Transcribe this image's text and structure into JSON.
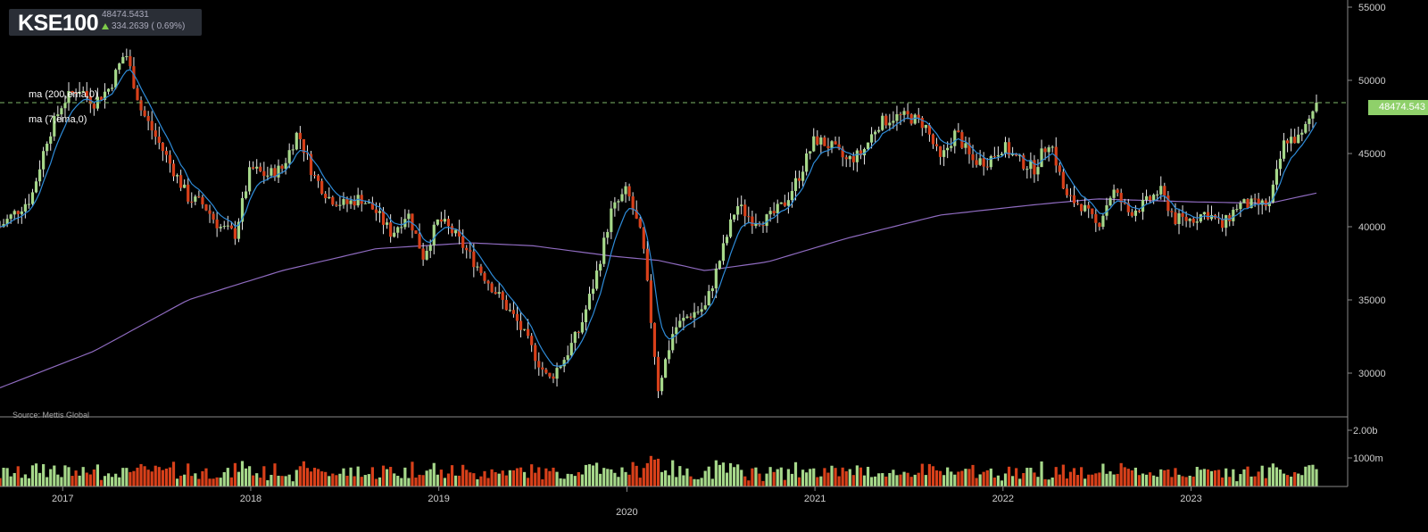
{
  "header": {
    "symbol": "KSE100",
    "price": "48474.5431",
    "change": "334.2639 ( 0.69%)"
  },
  "legend": [
    {
      "label": "ma (200,ema,0)",
      "color": "#8f6bc0"
    },
    {
      "label": "ma (7,ema,0)",
      "color": "#2e8bd8"
    }
  ],
  "source": "Source: Mettis Global",
  "price_label": "48474.543",
  "colors": {
    "up": "#a6d88a",
    "down": "#d8401a",
    "ma200": "#8f6bc0",
    "ma7": "#2e8bd8",
    "grid": "#888888",
    "last_price_line": "#7fb86a"
  },
  "chart_data": {
    "type": "candlestick",
    "y_axis_ticks": [
      "55000",
      "50000",
      "45000",
      "40000",
      "35000",
      "30000"
    ],
    "ylim": [
      28000,
      55000
    ],
    "volume_ticks": [
      "2.00b",
      "1000m"
    ],
    "x_axis_ticks": [
      "2017",
      "2018",
      "2019",
      "2020",
      "2021",
      "2022",
      "2023"
    ],
    "xlim": [
      "2016-09",
      "2023-09"
    ],
    "last_price": 48474.5431,
    "close_path": [
      [
        "2016-09",
        40000
      ],
      [
        "2016-10",
        41000
      ],
      [
        "2016-11",
        42000
      ],
      [
        "2016-12",
        46000
      ],
      [
        "2017-01",
        48500
      ],
      [
        "2017-02",
        49500
      ],
      [
        "2017-03",
        48500
      ],
      [
        "2017-04",
        49500
      ],
      [
        "2017-05",
        52000
      ],
      [
        "2017-06",
        48000
      ],
      [
        "2017-07",
        46000
      ],
      [
        "2017-08",
        44000
      ],
      [
        "2017-09",
        42000
      ],
      [
        "2017-10",
        41500
      ],
      [
        "2017-11",
        40000
      ],
      [
        "2017-12",
        39500
      ],
      [
        "2018-01",
        44000
      ],
      [
        "2018-02",
        43500
      ],
      [
        "2018-03",
        44000
      ],
      [
        "2018-04",
        46500
      ],
      [
        "2018-05",
        43500
      ],
      [
        "2018-06",
        42000
      ],
      [
        "2018-07",
        41500
      ],
      [
        "2018-08",
        42000
      ],
      [
        "2018-09",
        41000
      ],
      [
        "2018-10",
        39500
      ],
      [
        "2018-11",
        41000
      ],
      [
        "2018-12",
        38000
      ],
      [
        "2019-01",
        40500
      ],
      [
        "2019-02",
        39500
      ],
      [
        "2019-03",
        38000
      ],
      [
        "2019-04",
        36500
      ],
      [
        "2019-05",
        35000
      ],
      [
        "2019-06",
        33500
      ],
      [
        "2019-07",
        31500
      ],
      [
        "2019-08",
        29500
      ],
      [
        "2019-09",
        31000
      ],
      [
        "2019-10",
        33000
      ],
      [
        "2019-11",
        36500
      ],
      [
        "2019-12",
        41000
      ],
      [
        "2020-01",
        42500
      ],
      [
        "2020-02",
        39000
      ],
      [
        "2020-03",
        29000
      ],
      [
        "2020-04",
        33000
      ],
      [
        "2020-05",
        34000
      ],
      [
        "2020-06",
        34500
      ],
      [
        "2020-07",
        38000
      ],
      [
        "2020-08",
        41500
      ],
      [
        "2020-09",
        40500
      ],
      [
        "2020-10",
        40500
      ],
      [
        "2020-11",
        41500
      ],
      [
        "2020-12",
        43500
      ],
      [
        "2021-01",
        46000
      ],
      [
        "2021-02",
        45500
      ],
      [
        "2021-03",
        44500
      ],
      [
        "2021-04",
        45000
      ],
      [
        "2021-05",
        47000
      ],
      [
        "2021-06",
        47500
      ],
      [
        "2021-07",
        47500
      ],
      [
        "2021-08",
        47000
      ],
      [
        "2021-09",
        44500
      ],
      [
        "2021-10",
        46500
      ],
      [
        "2021-11",
        44500
      ],
      [
        "2021-12",
        44500
      ],
      [
        "2022-01",
        45500
      ],
      [
        "2022-02",
        44500
      ],
      [
        "2022-03",
        44000
      ],
      [
        "2022-04",
        46000
      ],
      [
        "2022-05",
        42000
      ],
      [
        "2022-06",
        41500
      ],
      [
        "2022-07",
        40000
      ],
      [
        "2022-08",
        42500
      ],
      [
        "2022-09",
        41000
      ],
      [
        "2022-10",
        41500
      ],
      [
        "2022-11",
        42500
      ],
      [
        "2022-12",
        40500
      ],
      [
        "2023-01",
        40500
      ],
      [
        "2023-02",
        41000
      ],
      [
        "2023-03",
        40000
      ],
      [
        "2023-04",
        41500
      ],
      [
        "2023-05",
        41500
      ],
      [
        "2023-06",
        41500
      ],
      [
        "2023-07",
        46000
      ],
      [
        "2023-08",
        46000
      ],
      [
        "2023-09",
        48474
      ]
    ],
    "ma200_path": [
      [
        "2016-09",
        29000
      ],
      [
        "2017-03",
        31500
      ],
      [
        "2017-09",
        35000
      ],
      [
        "2018-03",
        37000
      ],
      [
        "2018-09",
        38500
      ],
      [
        "2019-03",
        38900
      ],
      [
        "2019-07",
        38700
      ],
      [
        "2019-12",
        38000
      ],
      [
        "2020-03",
        37700
      ],
      [
        "2020-06",
        37000
      ],
      [
        "2020-10",
        37600
      ],
      [
        "2021-03",
        39200
      ],
      [
        "2021-09",
        40800
      ],
      [
        "2022-03",
        41500
      ],
      [
        "2022-07",
        41900
      ],
      [
        "2023-01",
        41700
      ],
      [
        "2023-06",
        41600
      ],
      [
        "2023-09",
        42300
      ]
    ]
  }
}
